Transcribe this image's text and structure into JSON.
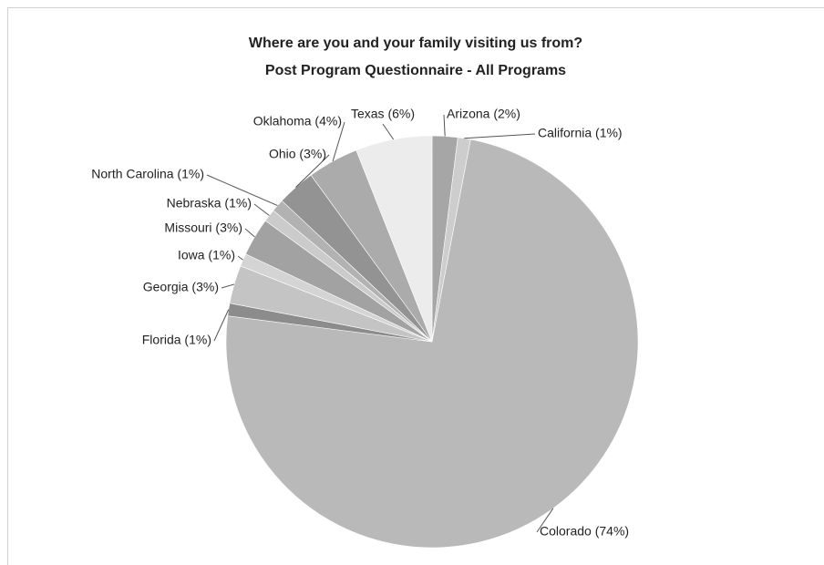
{
  "chart_data": {
    "type": "pie",
    "title": "Where are you and your family visiting us from?",
    "subtitle": "Post Program Questionnaire - All Programs",
    "categories": [
      "Arizona (2%)",
      "California (1%)",
      "Colorado (74%)",
      "Florida (1%)",
      "Georgia (3%)",
      "Iowa (1%)",
      "Missouri (3%)",
      "Nebraska (1%)",
      "North Carolina (1%)",
      "Ohio (3%)",
      "Oklahoma (4%)",
      "Texas (6%)"
    ],
    "values": [
      2,
      1,
      74,
      1,
      3,
      1,
      3,
      1,
      1,
      3,
      4,
      6
    ],
    "colors": [
      "#a6a6a6",
      "#cdcdcd",
      "#b9b9b9",
      "#8c8c8c",
      "#c4c4c4",
      "#d4d4d4",
      "#a2a2a2",
      "#cbcbcb",
      "#b2b2b2",
      "#939393",
      "#ababab",
      "#ececec"
    ]
  }
}
